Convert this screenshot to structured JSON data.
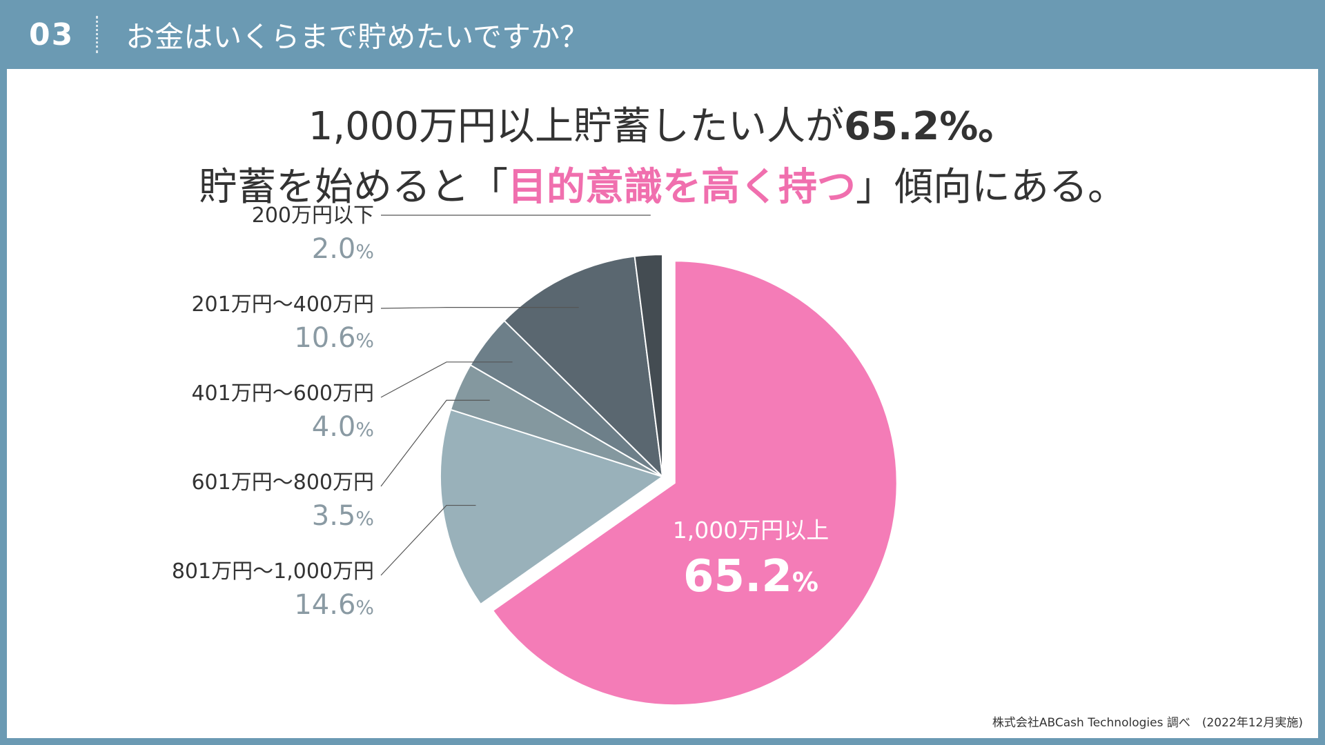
{
  "header": {
    "number": "03",
    "title": "お金はいくらまで貯めたいですか？"
  },
  "headline": {
    "line1_prefix": "1,000万円以上貯蓄したい人が",
    "line1_value": "65.2",
    "line1_unit": "%。",
    "line2_prefix": "貯蓄を始めると「",
    "line2_highlight": "目的意識を高く持つ",
    "line2_suffix": "」傾向にある。"
  },
  "colors": {
    "background": "#6b9ab3",
    "pink": "#f47cb7",
    "highlight_text": "#f06fae"
  },
  "chart_data": {
    "type": "pie",
    "title": "お金はいくらまで貯めたいですか？",
    "unit": "%",
    "slices": [
      {
        "label": "1,000万円以上",
        "value": 65.2,
        "color": "#f47cb7"
      },
      {
        "label": "801万円～1,000万円",
        "value": 14.6,
        "color": "#99b1ba"
      },
      {
        "label": "601万円～800万円",
        "value": 3.5,
        "color": "#84989f"
      },
      {
        "label": "401万円～600万円",
        "value": 4.0,
        "color": "#6d7f89"
      },
      {
        "label": "201万円～400万円",
        "value": 10.6,
        "color": "#5a6770"
      },
      {
        "label": "200万円以下",
        "value": 2.0,
        "color": "#444c52"
      }
    ],
    "exploded_slice": "1,000万円以上"
  },
  "source": "株式会社ABCash Technologies 調べ　(2022年12月実施)"
}
